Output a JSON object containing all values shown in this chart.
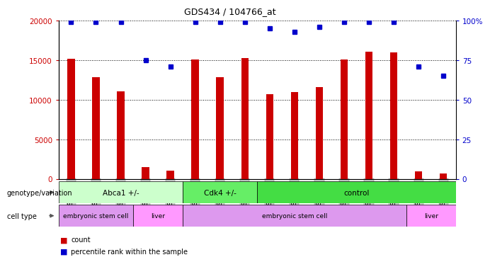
{
  "title": "GDS434 / 104766_at",
  "samples": [
    "GSM9269",
    "GSM9270",
    "GSM9271",
    "GSM9283",
    "GSM9284",
    "GSM9278",
    "GSM9279",
    "GSM9280",
    "GSM9272",
    "GSM9273",
    "GSM9274",
    "GSM9275",
    "GSM9276",
    "GSM9277",
    "GSM9281",
    "GSM9282"
  ],
  "bar_values": [
    15200,
    12900,
    11100,
    1450,
    1000,
    15100,
    12900,
    15300,
    10700,
    11000,
    11600,
    15100,
    16100,
    16000,
    900,
    700
  ],
  "dot_values": [
    99,
    99,
    99,
    75,
    71,
    99,
    99,
    99,
    95,
    93,
    96,
    99,
    99,
    99,
    71,
    65
  ],
  "bar_color": "#cc0000",
  "dot_color": "#0000cc",
  "ylim_left": [
    0,
    20000
  ],
  "ylim_right": [
    0,
    100
  ],
  "yticks_left": [
    0,
    5000,
    10000,
    15000,
    20000
  ],
  "ytick_labels_left": [
    "0",
    "5000",
    "10000",
    "15000",
    "20000"
  ],
  "yticks_right": [
    0,
    25,
    50,
    75,
    100
  ],
  "ytick_labels_right": [
    "0",
    "25",
    "50",
    "75",
    "100%"
  ],
  "background_color": "#ffffff",
  "plot_bg": "#ffffff",
  "grid_color": "#000000",
  "genotype_groups": [
    {
      "label": "Abca1 +/-",
      "start": 0,
      "end": 5,
      "color": "#ccffcc"
    },
    {
      "label": "Cdk4 +/-",
      "start": 5,
      "end": 8,
      "color": "#66ee66"
    },
    {
      "label": "control",
      "start": 8,
      "end": 16,
      "color": "#44dd44"
    }
  ],
  "celltype_groups": [
    {
      "label": "embryonic stem cell",
      "start": 0,
      "end": 3,
      "color": "#dd99ee"
    },
    {
      "label": "liver",
      "start": 3,
      "end": 5,
      "color": "#ff99ff"
    },
    {
      "label": "embryonic stem cell",
      "start": 5,
      "end": 14,
      "color": "#dd99ee"
    },
    {
      "label": "liver",
      "start": 14,
      "end": 16,
      "color": "#ff99ff"
    }
  ],
  "legend_count_color": "#cc0000",
  "legend_dot_color": "#0000cc",
  "xlabel_genotype": "genotype/variation",
  "xlabel_celltype": "cell type",
  "legend_count_label": "count",
  "legend_dot_label": "percentile rank within the sample",
  "tick_label_bg": "#cccccc"
}
